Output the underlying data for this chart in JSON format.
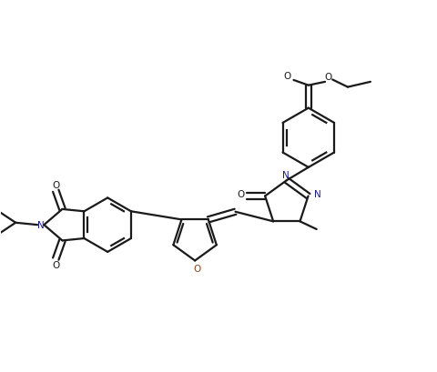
{
  "bg_color": "#ffffff",
  "line_color": "#1a1a1a",
  "line_width": 1.6,
  "figsize": [
    4.81,
    4.1
  ],
  "dpi": 100,
  "xlim": [
    0,
    10
  ],
  "ylim": [
    0,
    8.5
  ]
}
